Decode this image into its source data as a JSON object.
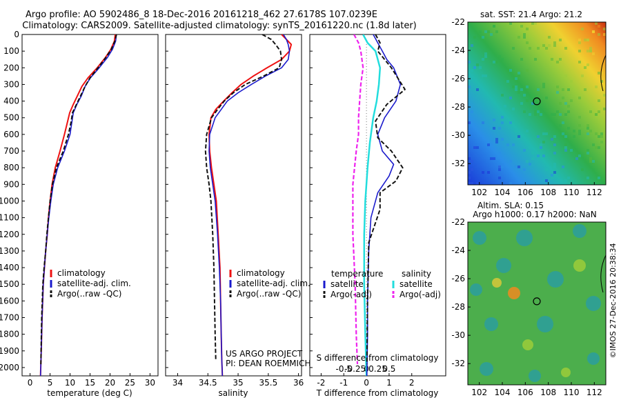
{
  "header": {
    "line1": "Argo profile: AO 5902486_8 18-Dec-2016 20161218_462 27.6178S 107.0239E",
    "line2": "Climatology: CARS2009. Satellite-adjusted climatology: synTS_20161220.nc (1.8d later)"
  },
  "side_label": "©IMOS 27-Dec-2016 20:38:34",
  "colors": {
    "climatology": "#ee1111",
    "satellite": "#1a1acc",
    "argo": "#111111",
    "sal_sat": "#22dddd",
    "sal_argo": "#ee22ee"
  },
  "chart_data": [
    {
      "type": "line",
      "xlabel": "temperature (deg C)",
      "xlim": [
        -2,
        32
      ],
      "xticks": [
        0,
        5,
        10,
        15,
        20,
        25,
        30
      ],
      "ylim": [
        0,
        2050
      ],
      "yticks": [
        0,
        100,
        200,
        300,
        400,
        500,
        600,
        700,
        800,
        900,
        1000,
        1100,
        1200,
        1300,
        1400,
        1500,
        1600,
        1700,
        1800,
        1900,
        2000
      ],
      "legend": [
        "climatology",
        "satellite-adj. clim.",
        "Argo(..raw -QC)"
      ],
      "series": [
        {
          "name": "climatology",
          "x": [
            21.3,
            21.1,
            20.2,
            18.8,
            16.8,
            14.5,
            13.0,
            11.8,
            10.8,
            9.9,
            9.4,
            8.6,
            7.5,
            6.3,
            5.5,
            5.0,
            4.6,
            4.3,
            3.9,
            3.6,
            3.3,
            3.0,
            2.8,
            2.6
          ],
          "y": [
            0,
            40,
            90,
            140,
            200,
            260,
            310,
            370,
            420,
            470,
            520,
            600,
            700,
            800,
            900,
            1000,
            1100,
            1200,
            1300,
            1400,
            1500,
            1700,
            1900,
            2050
          ]
        },
        {
          "name": "satellite-adj. clim.",
          "x": [
            21.6,
            21.4,
            20.6,
            19.3,
            17.3,
            15.1,
            13.8,
            12.8,
            11.7,
            10.8,
            10.5,
            10.0,
            8.6,
            6.9,
            5.8,
            5.2,
            4.7,
            4.3,
            3.9,
            3.6,
            3.3,
            3.0,
            2.8,
            2.6
          ],
          "y": [
            0,
            40,
            90,
            140,
            200,
            260,
            310,
            370,
            420,
            470,
            520,
            600,
            700,
            800,
            900,
            1000,
            1100,
            1200,
            1300,
            1400,
            1500,
            1700,
            1900,
            2050
          ]
        },
        {
          "name": "Argo(..raw -QC)",
          "x": [
            21.6,
            21.2,
            20.3,
            18.9,
            17.0,
            15.0,
            13.8,
            12.6,
            11.6,
            10.6,
            10.3,
            9.6,
            8.3,
            6.6,
            5.6,
            5.0,
            4.6,
            4.2,
            3.9,
            3.5,
            3.2,
            2.9,
            2.7
          ],
          "y": [
            0,
            40,
            90,
            140,
            200,
            260,
            310,
            370,
            420,
            470,
            520,
            600,
            700,
            800,
            900,
            1000,
            1100,
            1200,
            1300,
            1400,
            1500,
            1700,
            1980
          ]
        }
      ]
    },
    {
      "type": "line",
      "xlabel": "salinity",
      "xlim": [
        33.8,
        36.05
      ],
      "xticks": [
        34,
        34.5,
        35,
        35.5,
        36
      ],
      "ylim": [
        0,
        2050
      ],
      "legend": [
        "climatology",
        "satellite-adj. clim.",
        "Argo(..raw -QC)"
      ],
      "annotation": [
        "US ARGO PROJECT",
        "PI: DEAN ROEMMICH"
      ],
      "series": [
        {
          "name": "climatology",
          "x": [
            35.72,
            35.8,
            35.88,
            35.85,
            35.72,
            35.48,
            35.25,
            35.05,
            34.9,
            34.76,
            34.63,
            34.55,
            34.52,
            34.53,
            34.56,
            34.6,
            34.64,
            34.67,
            34.7,
            34.71,
            34.72,
            34.73,
            34.74
          ],
          "y": [
            0,
            30,
            60,
            100,
            150,
            200,
            250,
            300,
            350,
            400,
            450,
            500,
            600,
            700,
            800,
            900,
            1000,
            1200,
            1400,
            1600,
            1800,
            1950,
            2050
          ]
        },
        {
          "name": "satellite-adj. clim.",
          "x": [
            35.75,
            35.8,
            35.83,
            35.85,
            35.83,
            35.72,
            35.45,
            35.22,
            35.0,
            34.82,
            34.72,
            34.62,
            34.53,
            34.52,
            34.54,
            34.58,
            34.62,
            34.66,
            34.69,
            34.71,
            34.72,
            34.73,
            34.74
          ],
          "y": [
            0,
            30,
            60,
            100,
            150,
            200,
            250,
            300,
            350,
            400,
            450,
            500,
            600,
            700,
            800,
            900,
            1000,
            1200,
            1400,
            1600,
            1800,
            1950,
            2050
          ]
        },
        {
          "name": "Argo(..raw -QC)",
          "x": [
            35.4,
            35.55,
            35.62,
            35.7,
            35.72,
            35.68,
            35.42,
            35.12,
            34.92,
            34.77,
            34.66,
            34.56,
            34.48,
            34.46,
            34.48,
            34.52,
            34.55,
            34.58,
            34.6,
            34.61,
            34.62,
            34.63
          ],
          "y": [
            0,
            30,
            60,
            100,
            150,
            200,
            250,
            300,
            350,
            400,
            450,
            500,
            600,
            700,
            800,
            900,
            1000,
            1200,
            1400,
            1600,
            1800,
            1950
          ]
        }
      ]
    },
    {
      "type": "line",
      "xlabel": "T difference from climatology",
      "xlabel2": "S difference from climatology",
      "xlim": [
        -2.5,
        3.5
      ],
      "xticks": [
        -2,
        -1,
        0,
        1,
        2
      ],
      "xticklabels": [
        "-2",
        "-1",
        "0",
        "1",
        "2"
      ],
      "x2ticks": [
        -1,
        -0.5,
        0,
        0.5,
        1
      ],
      "x2ticklabels": [
        "-0.5",
        "-0.25",
        "0",
        "0.25",
        "0.5"
      ],
      "ylim": [
        0,
        2050
      ],
      "legend_groups": [
        {
          "title": "temperature",
          "items": [
            "satellite",
            "Argo(-adj)"
          ]
        },
        {
          "title": "salinity",
          "items": [
            "satellite",
            "Argo(-adj)"
          ]
        }
      ],
      "series": [
        {
          "name": "satellite",
          "group": "temperature",
          "x": [
            0.3,
            0.5,
            0.7,
            0.9,
            1.2,
            1.5,
            1.3,
            0.8,
            0.5,
            0.7,
            1.2,
            1.0,
            0.5,
            0.2,
            0.1,
            0.05,
            0.05,
            0.02
          ],
          "y": [
            0,
            50,
            100,
            150,
            200,
            300,
            400,
            500,
            600,
            700,
            780,
            850,
            950,
            1100,
            1300,
            1600,
            1800,
            2050
          ]
        },
        {
          "name": "Argo(-adj)",
          "group": "temperature",
          "x": [
            0.4,
            0.6,
            0.5,
            0.8,
            1.1,
            1.7,
            0.9,
            0.4,
            0.5,
            1.1,
            1.6,
            1.3,
            0.6,
            0.6,
            0.1,
            0.05,
            0.02
          ],
          "y": [
            0,
            50,
            100,
            150,
            200,
            330,
            420,
            520,
            620,
            700,
            800,
            880,
            950,
            1050,
            1250,
            1600,
            1980
          ]
        },
        {
          "name": "satellite",
          "group": "salinity",
          "x": [
            -0.15,
            0.05,
            0.4,
            0.6,
            0.55,
            0.45,
            0.3,
            0.15,
            0.05,
            -0.05,
            -0.1,
            -0.1,
            -0.05,
            0.0
          ],
          "y": [
            0,
            50,
            100,
            200,
            300,
            400,
            500,
            650,
            800,
            1000,
            1200,
            1500,
            1800,
            2050
          ]
        },
        {
          "name": "Argo(-adj)",
          "group": "salinity",
          "x": [
            -0.55,
            -0.35,
            -0.25,
            -0.15,
            -0.25,
            -0.3,
            -0.35,
            -0.35,
            -0.45,
            -0.6,
            -0.6,
            -0.5,
            -0.45,
            -0.4
          ],
          "y": [
            0,
            50,
            100,
            200,
            300,
            400,
            500,
            600,
            700,
            900,
            1200,
            1500,
            1800,
            1980
          ]
        }
      ]
    },
    {
      "type": "heatmap",
      "title": "sat. SST: 21.4  Argo: 21.2",
      "xlim": [
        101,
        113
      ],
      "ylim": [
        -33.5,
        -22
      ],
      "xticks": [
        102,
        104,
        106,
        108,
        110,
        112
      ],
      "yticks": [
        -22,
        -24,
        -26,
        -28,
        -30,
        -32
      ],
      "marker": {
        "x": 107.0,
        "y": -27.6
      }
    },
    {
      "type": "heatmap",
      "title": "Altim. SLA: 0.15",
      "subtitle": "Argo h1000: 0.17 h2000: NaN",
      "xlim": [
        101,
        113
      ],
      "ylim": [
        -33.5,
        -22
      ],
      "xticks": [
        102,
        104,
        106,
        108,
        110,
        112
      ],
      "yticks": [
        -22,
        -24,
        -26,
        -28,
        -30,
        -32
      ],
      "marker": {
        "x": 107.0,
        "y": -27.6
      }
    }
  ]
}
